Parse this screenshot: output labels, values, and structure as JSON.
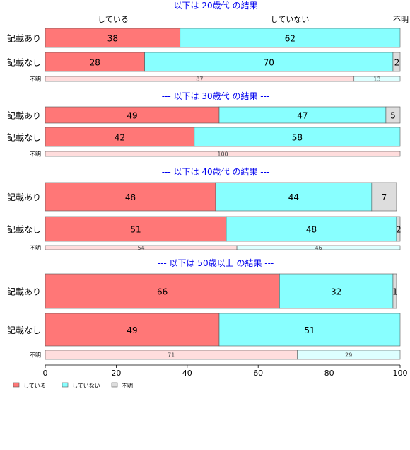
{
  "colors": {
    "yes": "#ff7777",
    "no": "#88ffff",
    "unknown": "#dddddd",
    "yes_light": "#ffdddd",
    "no_light": "#ddffff",
    "unknown_light": "#eeeeee",
    "group_title": "#0000ee"
  },
  "chart_data": {
    "type": "bar",
    "orientation": "horizontal",
    "stacked": true,
    "xlim": [
      0,
      100
    ],
    "x_ticks": [
      0,
      20,
      40,
      60,
      80,
      100
    ],
    "column_headers": [
      "している",
      "していない",
      "不明"
    ],
    "legend": {
      "placement": "bottom-left",
      "entries": [
        {
          "label": "している",
          "color": "#ff7777"
        },
        {
          "label": "していない",
          "color": "#88ffff"
        },
        {
          "label": "不明",
          "color": "#dddddd"
        }
      ]
    },
    "groups": [
      {
        "title": "--- 以下は 20歳代 の結果 ---",
        "rows": [
          {
            "label": "記載あり",
            "values": [
              38,
              62,
              0
            ]
          },
          {
            "label": "記載なし",
            "values": [
              28,
              70,
              2
            ]
          },
          {
            "label": "不明",
            "values": [
              87,
              13,
              0
            ],
            "small": true
          }
        ]
      },
      {
        "title": "--- 以下は 30歳代 の結果 ---",
        "rows": [
          {
            "label": "記載あり",
            "values": [
              49,
              47,
              5
            ]
          },
          {
            "label": "記載なし",
            "values": [
              42,
              58,
              0
            ]
          },
          {
            "label": "不明",
            "values": [
              100,
              0,
              0
            ],
            "small": true
          }
        ]
      },
      {
        "title": "--- 以下は 40歳代 の結果 ---",
        "rows": [
          {
            "label": "記載あり",
            "values": [
              48,
              44,
              7
            ]
          },
          {
            "label": "記載なし",
            "values": [
              51,
              48,
              2
            ]
          },
          {
            "label": "不明",
            "values": [
              54,
              46,
              0
            ],
            "small": true
          }
        ]
      },
      {
        "title": "--- 以下は 50歳以上 の結果 ---",
        "rows": [
          {
            "label": "記載あり",
            "values": [
              66,
              32,
              1
            ]
          },
          {
            "label": "記載なし",
            "values": [
              49,
              51,
              0
            ]
          },
          {
            "label": "不明",
            "values": [
              71,
              29,
              0
            ],
            "small": true
          }
        ]
      }
    ]
  }
}
